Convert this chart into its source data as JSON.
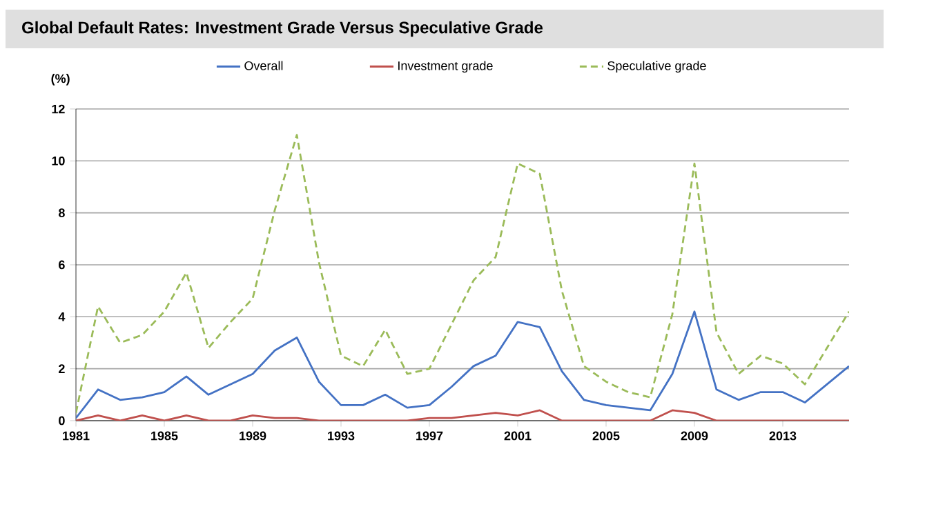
{
  "chart_data": {
    "type": "line",
    "title": "Global Default Rates: Investment Grade Versus Speculative Grade",
    "ylabel": "(%)",
    "x": [
      1981,
      1982,
      1983,
      1984,
      1985,
      1986,
      1987,
      1988,
      1989,
      1990,
      1991,
      1992,
      1993,
      1994,
      1995,
      1996,
      1997,
      1998,
      1999,
      2000,
      2001,
      2002,
      2003,
      2004,
      2005,
      2006,
      2007,
      2008,
      2009,
      2010,
      2011,
      2012,
      2013,
      2014,
      2015,
      2016
    ],
    "xlim": [
      1981,
      2016
    ],
    "xticks": [
      1981,
      1985,
      1989,
      1993,
      1997,
      2001,
      2005,
      2009,
      2013
    ],
    "ylim": [
      0,
      12
    ],
    "yticks": [
      0,
      2,
      4,
      6,
      8,
      10,
      12
    ],
    "grid": "y",
    "legend": "top",
    "marker": "none",
    "series": [
      {
        "name": "Overall",
        "color": "#4472c4",
        "line_style": "solid",
        "values": [
          0.1,
          1.2,
          0.8,
          0.9,
          1.1,
          1.7,
          1.0,
          1.4,
          1.8,
          2.7,
          3.2,
          1.5,
          0.6,
          0.6,
          1.0,
          0.5,
          0.6,
          1.3,
          2.1,
          2.5,
          3.8,
          3.6,
          1.9,
          0.8,
          0.6,
          0.5,
          0.4,
          1.8,
          4.2,
          1.2,
          0.8,
          1.1,
          1.1,
          0.7,
          1.4,
          2.1
        ]
      },
      {
        "name": "Investment grade",
        "color": "#c0504d",
        "line_style": "solid",
        "values": [
          0.0,
          0.2,
          0.0,
          0.2,
          0.0,
          0.2,
          0.0,
          0.0,
          0.2,
          0.1,
          0.1,
          0.0,
          0.0,
          0.0,
          0.0,
          0.0,
          0.1,
          0.1,
          0.2,
          0.3,
          0.2,
          0.4,
          0.0,
          0.0,
          0.0,
          0.0,
          0.0,
          0.4,
          0.3,
          0.0,
          0.0,
          0.0,
          0.0,
          0.0,
          0.0,
          0.0
        ]
      },
      {
        "name": "Speculative grade",
        "color": "#9bbb59",
        "line_style": "dashed",
        "values": [
          0.3,
          4.4,
          3.0,
          3.3,
          4.2,
          5.7,
          2.8,
          3.8,
          4.7,
          8.1,
          11.0,
          6.1,
          2.5,
          2.1,
          3.5,
          1.8,
          2.0,
          3.7,
          5.4,
          6.3,
          9.9,
          9.5,
          5.0,
          2.1,
          1.5,
          1.1,
          0.9,
          4.1,
          9.9,
          3.4,
          1.8,
          2.5,
          2.2,
          1.4,
          2.8,
          4.2
        ]
      }
    ]
  }
}
